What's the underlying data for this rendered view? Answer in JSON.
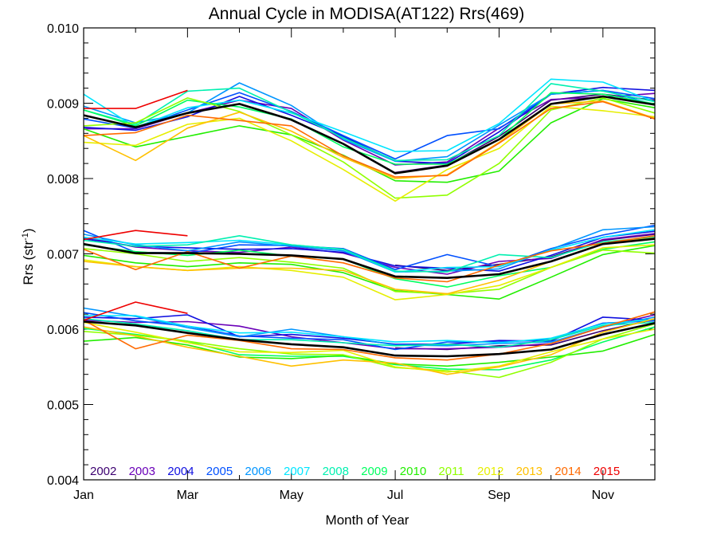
{
  "chart_data": {
    "type": "line",
    "title": "Annual Cycle in MODISA(AT122) Rrs(469)",
    "xlabel": "Month of Year",
    "ylabel": "Rrs (str",
    "ylabel_sup": "-1",
    "ylabel_close": ")",
    "xlim": [
      1,
      12
    ],
    "ylim": [
      0.004,
      0.01
    ],
    "x_ticks": [
      1,
      3,
      5,
      7,
      9,
      11
    ],
    "x_tick_labels": [
      "Jan",
      "Mar",
      "May",
      "Jul",
      "Sep",
      "Nov"
    ],
    "y_ticks": [
      0.004,
      0.005,
      0.006,
      0.007,
      0.008,
      0.009,
      0.01
    ],
    "y_tick_labels": [
      "0.004",
      "0.005",
      "0.006",
      "0.007",
      "0.008",
      "0.009",
      "0.010"
    ],
    "x_months": [
      1,
      2,
      3,
      4,
      5,
      6,
      7,
      8,
      9,
      10,
      11,
      12
    ],
    "legend_years": [
      "2002",
      "2003",
      "2004",
      "2005",
      "2006",
      "2007",
      "2008",
      "2009",
      "2010",
      "2011",
      "2012",
      "2013",
      "2014",
      "2015"
    ],
    "legend_colors": [
      "#3c0070",
      "#6a00b8",
      "#1010e0",
      "#0050ff",
      "#0095ff",
      "#00e5ff",
      "#00f0b0",
      "#00ff60",
      "#22ee00",
      "#90ff00",
      "#e6ee00",
      "#ffc000",
      "#ff6a00",
      "#ee0000"
    ],
    "mean_color": "#000000",
    "groups": [
      {
        "mean": [
          0.00884,
          0.00868,
          0.00887,
          0.00899,
          0.00878,
          0.00846,
          0.00807,
          0.00817,
          0.00852,
          0.00899,
          0.00909,
          0.00898
        ],
        "series": [
          {
            "name": "2002",
            "values": [
              null,
              null,
              null,
              null,
              null,
              null,
              0.00808,
              0.00818,
              0.00856,
              0.00904,
              0.00912,
              0.00904
            ]
          },
          {
            "name": "2003",
            "values": [
              0.00866,
              0.00866,
              0.00887,
              0.00904,
              0.00893,
              0.00851,
              0.00818,
              0.00822,
              0.00867,
              0.00905,
              0.00908,
              0.00913
            ]
          },
          {
            "name": "2004",
            "values": [
              0.00868,
              0.00864,
              0.00882,
              0.00909,
              0.00884,
              0.00856,
              0.00823,
              0.0082,
              0.00862,
              0.00912,
              0.00921,
              0.00917
            ]
          },
          {
            "name": "2005",
            "values": [
              0.00879,
              0.00867,
              0.00891,
              0.00914,
              0.00889,
              0.00857,
              0.00826,
              0.00857,
              0.00866,
              0.00912,
              0.00917,
              0.00906
            ]
          },
          {
            "name": "2006",
            "values": [
              0.00896,
              0.00874,
              0.00887,
              0.00927,
              0.00897,
              0.00852,
              0.00823,
              0.00829,
              0.00871,
              0.00912,
              0.00917,
              0.00898
            ]
          },
          {
            "name": "2007",
            "values": [
              0.00912,
              0.00868,
              0.00894,
              0.00904,
              0.00887,
              0.00862,
              0.00836,
              0.00837,
              0.00873,
              0.00932,
              0.00928,
              0.00902
            ]
          },
          {
            "name": "2008",
            "values": [
              0.00891,
              0.00872,
              0.00916,
              0.0092,
              0.00888,
              0.00854,
              0.00824,
              0.00825,
              0.00857,
              0.00926,
              0.00916,
              0.00902
            ]
          },
          {
            "name": "2009",
            "values": [
              0.00891,
              0.0087,
              0.00904,
              0.00895,
              0.00879,
              0.00842,
              0.00819,
              0.00819,
              0.00852,
              0.00914,
              0.00912,
              0.00899
            ]
          },
          {
            "name": "2010",
            "values": [
              0.00866,
              0.00842,
              0.00856,
              0.0087,
              0.00858,
              0.00831,
              0.00797,
              0.00795,
              0.0081,
              0.00874,
              0.00906,
              0.00894
            ]
          },
          {
            "name": "2011",
            "values": [
              0.0087,
              0.00874,
              0.00907,
              0.00889,
              0.00858,
              0.00822,
              0.00774,
              0.00778,
              0.0082,
              0.00891,
              0.00907,
              0.00887
            ]
          },
          {
            "name": "2012",
            "values": [
              0.00848,
              0.00844,
              0.00872,
              0.0088,
              0.0085,
              0.00812,
              0.0077,
              0.00812,
              0.0084,
              0.00896,
              0.0089,
              0.00882
            ]
          },
          {
            "name": "2013",
            "values": [
              0.00857,
              0.00824,
              0.00867,
              0.00888,
              0.00863,
              0.00828,
              0.008,
              0.00805,
              0.00848,
              0.00899,
              0.00903,
              0.0088
            ]
          },
          {
            "name": "2014",
            "values": [
              0.00857,
              0.00861,
              0.00884,
              0.00877,
              0.0087,
              0.0083,
              0.00802,
              0.00804,
              0.00847,
              0.00893,
              0.00902,
              0.00879
            ]
          },
          {
            "name": "2015",
            "values": [
              0.00893,
              0.00893,
              0.00917,
              null,
              null,
              null,
              null,
              null,
              null,
              null,
              null,
              null
            ]
          }
        ]
      },
      {
        "mean": [
          0.00713,
          0.00701,
          0.00701,
          0.007,
          0.00698,
          0.00693,
          0.0067,
          0.00668,
          0.00673,
          0.0069,
          0.00713,
          0.0072
        ],
        "series": [
          {
            "name": "2002",
            "values": [
              null,
              null,
              null,
              null,
              null,
              null,
              0.00685,
              0.00678,
              0.00686,
              0.00696,
              0.00718,
              0.00726
            ]
          },
          {
            "name": "2003",
            "values": [
              0.00722,
              0.00709,
              0.00704,
              0.00702,
              0.00709,
              0.00701,
              0.00682,
              0.00673,
              0.0069,
              0.00694,
              0.00719,
              0.00727
            ]
          },
          {
            "name": "2004",
            "values": [
              0.0072,
              0.0071,
              0.00708,
              0.00706,
              0.00707,
              0.00702,
              0.00684,
              0.00681,
              0.00677,
              0.00698,
              0.00722,
              0.0073
            ]
          },
          {
            "name": "2005",
            "values": [
              0.00731,
              0.00702,
              0.00701,
              0.00712,
              0.00711,
              0.00707,
              0.00679,
              0.00699,
              0.00683,
              0.00707,
              0.00725,
              0.00738
            ]
          },
          {
            "name": "2006",
            "values": [
              0.00726,
              0.00712,
              0.00704,
              0.00716,
              0.0071,
              0.00704,
              0.00676,
              0.00677,
              0.0068,
              0.00706,
              0.00732,
              0.00736
            ]
          },
          {
            "name": "2007",
            "values": [
              0.00722,
              0.00713,
              0.00715,
              0.00718,
              0.00712,
              0.00706,
              0.00676,
              0.00682,
              0.00683,
              0.00705,
              0.00722,
              0.00732
            ]
          },
          {
            "name": "2008",
            "values": [
              0.00718,
              0.0071,
              0.00712,
              0.00724,
              0.00712,
              0.00706,
              0.00677,
              0.00676,
              0.00699,
              0.00695,
              0.00716,
              0.00722
            ]
          },
          {
            "name": "2009",
            "values": [
              0.00712,
              0.00703,
              0.00698,
              0.00705,
              0.00697,
              0.00693,
              0.00667,
              0.00656,
              0.00671,
              0.00682,
              0.00706,
              0.00716
            ]
          },
          {
            "name": "2010",
            "values": [
              0.00698,
              0.00688,
              0.00683,
              0.00688,
              0.00686,
              0.00675,
              0.00651,
              0.00646,
              0.0064,
              0.00669,
              0.00699,
              0.00711
            ]
          },
          {
            "name": "2011",
            "values": [
              0.00707,
              0.007,
              0.0069,
              0.00695,
              0.00689,
              0.00681,
              0.0065,
              0.00647,
              0.00653,
              0.00682,
              0.00705,
              0.00701
            ]
          },
          {
            "name": "2012",
            "values": [
              0.00692,
              0.00683,
              0.00678,
              0.00683,
              0.00678,
              0.00669,
              0.00639,
              0.00646,
              0.00658,
              0.00682,
              0.00708,
              0.00712
            ]
          },
          {
            "name": "2013",
            "values": [
              0.0069,
              0.00683,
              0.00678,
              0.00681,
              0.00681,
              0.00678,
              0.00653,
              0.00647,
              0.00665,
              0.0069,
              0.00714,
              0.00721
            ]
          },
          {
            "name": "2014",
            "values": [
              0.00706,
              0.00679,
              0.00703,
              0.00681,
              0.00697,
              0.00688,
              0.00668,
              0.00663,
              0.00685,
              0.00704,
              0.00714,
              0.00724
            ]
          },
          {
            "name": "2015",
            "values": [
              0.00719,
              0.00731,
              0.00724,
              null,
              null,
              null,
              null,
              null,
              null,
              null,
              null,
              null
            ]
          }
        ]
      },
      {
        "mean": [
          0.0061,
          0.00605,
          0.00595,
          0.00586,
          0.0058,
          0.00576,
          0.00565,
          0.00564,
          0.00567,
          0.00573,
          0.00593,
          0.00608
        ],
        "series": [
          {
            "name": "2002",
            "values": [
              null,
              null,
              null,
              null,
              null,
              null,
              0.00575,
              0.00573,
              0.00578,
              0.00579,
              0.00598,
              0.00613
            ]
          },
          {
            "name": "2003",
            "values": [
              0.00612,
              0.00609,
              0.0061,
              0.00604,
              0.0059,
              0.00582,
              0.00574,
              0.00574,
              0.00576,
              0.00581,
              0.00603,
              0.00619
            ]
          },
          {
            "name": "2004",
            "values": [
              0.00616,
              0.00614,
              0.00619,
              0.0059,
              0.00593,
              0.00588,
              0.0058,
              0.0058,
              0.00585,
              0.00584,
              0.00616,
              0.00612
            ]
          },
          {
            "name": "2005",
            "values": [
              0.00622,
              0.00611,
              0.00604,
              0.00591,
              0.00588,
              0.00586,
              0.00573,
              0.00583,
              0.00583,
              0.00586,
              0.00608,
              0.00611
            ]
          },
          {
            "name": "2006",
            "values": [
              0.00628,
              0.00617,
              0.00602,
              0.0059,
              0.006,
              0.0059,
              0.00579,
              0.00578,
              0.00581,
              0.00583,
              0.00603,
              0.00616
            ]
          },
          {
            "name": "2007",
            "values": [
              0.00618,
              0.00618,
              0.00604,
              0.00595,
              0.00596,
              0.0059,
              0.00583,
              0.00585,
              0.00582,
              0.00588,
              0.00607,
              0.00613
            ]
          },
          {
            "name": "2008",
            "values": [
              0.00614,
              0.00607,
              0.00598,
              0.00586,
              0.00586,
              0.00582,
              0.00578,
              0.0058,
              0.00576,
              0.00586,
              0.00605,
              0.00609
            ]
          },
          {
            "name": "2009",
            "values": [
              0.00601,
              0.00593,
              0.00584,
              0.00566,
              0.00564,
              0.00564,
              0.00553,
              0.00547,
              0.00546,
              0.00559,
              0.00583,
              0.00603
            ]
          },
          {
            "name": "2010",
            "values": [
              0.00584,
              0.00589,
              0.00579,
              0.00563,
              0.00561,
              0.00565,
              0.00554,
              0.00551,
              0.00556,
              0.00563,
              0.00571,
              0.00593
            ]
          },
          {
            "name": "2011",
            "values": [
              0.00597,
              0.00592,
              0.00584,
              0.00574,
              0.00567,
              0.00566,
              0.00549,
              0.00545,
              0.00536,
              0.00556,
              0.00587,
              0.00607
            ]
          },
          {
            "name": "2012",
            "values": [
              0.00609,
              0.00596,
              0.00582,
              0.0057,
              0.00569,
              0.00572,
              0.0055,
              0.00543,
              0.00551,
              0.0057,
              0.00587,
              0.006
            ]
          },
          {
            "name": "2013",
            "values": [
              0.00603,
              0.00591,
              0.00576,
              0.00564,
              0.00551,
              0.00559,
              0.00555,
              0.0054,
              0.0055,
              0.00566,
              0.00596,
              0.00614
            ]
          },
          {
            "name": "2014",
            "values": [
              0.00612,
              0.00574,
              0.00592,
              0.00585,
              0.00574,
              0.00573,
              0.00562,
              0.00559,
              0.00567,
              0.00581,
              0.00603,
              0.00623
            ]
          },
          {
            "name": "2015",
            "values": [
              0.00612,
              0.00636,
              0.00621,
              null,
              null,
              null,
              null,
              null,
              null,
              null,
              null,
              null
            ]
          }
        ]
      }
    ]
  }
}
